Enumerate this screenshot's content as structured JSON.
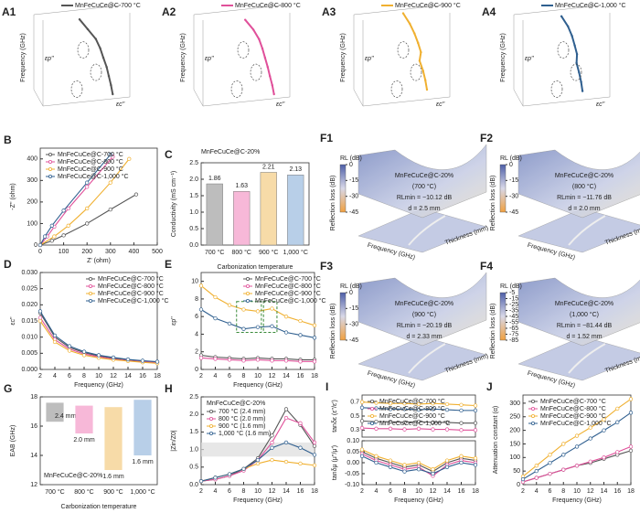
{
  "chart_data": [
    {
      "type": "line3d",
      "label": "A1",
      "zlabel": "Frequency (GHz)",
      "annotations": [
        "εp''",
        "εc''"
      ],
      "series": [
        {
          "name": "MnFeCuCe@C-700 °C",
          "color": "#555555",
          "z": [
            2,
            4,
            6,
            8,
            10,
            12,
            14,
            16,
            18
          ],
          "x": [
            9,
            7.5,
            6,
            5.2,
            4.6,
            4,
            3.6,
            3.2,
            2.9
          ],
          "values": [
            4,
            3.2,
            2.4,
            2,
            1.6,
            1.3,
            1.1,
            0.9,
            0.8
          ]
        }
      ]
    },
    {
      "type": "line3d",
      "label": "A2",
      "zlabel": "Frequency (GHz)",
      "annotations": [
        "εp''",
        "εc''"
      ],
      "series": [
        {
          "name": "MnFeCuCe@C-800 °C",
          "color": "#e0509a",
          "z": [
            2,
            4,
            6,
            8,
            10,
            12,
            14,
            16,
            18
          ],
          "x": [
            8,
            6.5,
            5.4,
            4.8,
            4.3,
            3.8,
            3.4,
            3,
            2.7
          ],
          "values": [
            3.6,
            2.8,
            2.1,
            1.8,
            1.5,
            1.2,
            1,
            0.9,
            0.8
          ]
        }
      ]
    },
    {
      "type": "line3d",
      "label": "A3",
      "zlabel": "Frequency (GHz)",
      "annotations": [
        "εp''",
        "εc''"
      ],
      "series": [
        {
          "name": "MnFeCuCe@C-900 °C",
          "color": "#f0b030",
          "z": [
            2,
            4,
            6,
            8,
            10,
            12,
            14,
            16,
            18
          ],
          "x": [
            10,
            8.6,
            7.6,
            6.9,
            6.4,
            6.7,
            5.9,
            5.4,
            5
          ],
          "values": [
            9.5,
            8.2,
            7.3,
            6.8,
            6.6,
            6.9,
            6,
            5.5,
            5
          ]
        }
      ]
    },
    {
      "type": "line3d",
      "label": "A4",
      "zlabel": "Frequency (GHz)",
      "annotations": [
        "εp''",
        "εc''"
      ],
      "series": [
        {
          "name": "MnFeCuCe@C-1,000 °C",
          "color": "#2f5f8f",
          "z": [
            2,
            4,
            6,
            8,
            10,
            12,
            14,
            16,
            18
          ],
          "x": [
            9.5,
            8.2,
            7.4,
            6.8,
            6.5,
            6.6,
            6,
            5.6,
            5.3
          ],
          "values": [
            6.8,
            5.8,
            5.2,
            4.6,
            4.8,
            4.9,
            4.2,
            3.9,
            3.6
          ]
        }
      ]
    },
    {
      "type": "line",
      "label": "B",
      "xlabel": "Z' (ohm)",
      "ylabel": "-Z'' (ohm)",
      "xlim": [
        0,
        500
      ],
      "xticks": [
        0,
        100,
        200,
        300,
        400,
        500
      ],
      "ylim": [
        0,
        450
      ],
      "yticks": [
        0,
        100,
        200,
        300,
        400
      ],
      "legend": "upper left",
      "series": [
        {
          "name": "MnFeCuCe@C-700 °C",
          "color": "#555555",
          "x": [
            0,
            50,
            100,
            200,
            300,
            410
          ],
          "values": [
            0,
            20,
            45,
            100,
            165,
            235
          ]
        },
        {
          "name": "MnFeCuCe@C-800 °C",
          "color": "#e0509a",
          "x": [
            0,
            30,
            60,
            120,
            200,
            310
          ],
          "values": [
            0,
            40,
            85,
            170,
            270,
            410
          ]
        },
        {
          "name": "MnFeCuCe@C-900 °C",
          "color": "#f0b030",
          "x": [
            0,
            60,
            120,
            200,
            300,
            380
          ],
          "values": [
            0,
            40,
            90,
            170,
            290,
            400
          ]
        },
        {
          "name": "MnFeCuCe@C-1,000 °C",
          "color": "#2f5f8f",
          "x": [
            0,
            20,
            50,
            100,
            200,
            300
          ],
          "values": [
            0,
            40,
            90,
            160,
            290,
            420
          ]
        }
      ]
    },
    {
      "type": "bar",
      "label": "C",
      "annotation": "MnFeCuCe@C-20%",
      "xlabel": "Carbonization temperature",
      "ylabel": "Conductivity (mS cm⁻¹)",
      "categories": [
        "700 °C",
        "800 °C",
        "900 °C",
        "1,000 °C"
      ],
      "values": [
        1.86,
        1.63,
        2.21,
        2.13
      ],
      "colors": [
        "#bdbdbd",
        "#f7b8d8",
        "#f7dba8",
        "#b8cfe8"
      ],
      "ylim": [
        0,
        2.5
      ],
      "yticks": [
        {
          "value": 0,
          "label": "0.0"
        },
        {
          "value": 0.5,
          "label": "0.5"
        },
        {
          "value": 1,
          "label": "1.0"
        },
        {
          "value": 1.5,
          "label": "1.5"
        },
        {
          "value": 2,
          "label": "2.0"
        },
        {
          "value": 2.5,
          "label": "2.5"
        }
      ]
    },
    {
      "type": "surface3d",
      "label": "F1",
      "colorbar_title": "RL (dB)",
      "colorbar_ticks": [
        0,
        -15,
        -30,
        -45
      ],
      "texts": [
        "MnFeCuCe@C-20%",
        "(700 °C)",
        "RLmin = −10.12 dB",
        "d = 2.5 mm"
      ],
      "zlabel": "Reflection loss (dB)",
      "xlabel": "Frequency (GHz)",
      "ylabel": "Thickness (mm)"
    },
    {
      "type": "surface3d",
      "label": "F2",
      "colorbar_title": "RL (dB)",
      "colorbar_ticks": [
        0,
        -15,
        -30,
        -45
      ],
      "texts": [
        "MnFeCuCe@C-20%",
        "(800 °C)",
        "RLmin = −11.76 dB",
        "d = 2.0 mm"
      ],
      "zlabel": "Reflection loss (dB)",
      "xlabel": "Frequency (GHz)",
      "ylabel": "Thickness (mm)"
    },
    {
      "type": "line",
      "label": "D",
      "xlabel": "Frequency (GHz)",
      "ylabel": "εc''",
      "xlim": [
        2,
        18
      ],
      "xticks": [
        2,
        4,
        6,
        8,
        10,
        12,
        14,
        16,
        18
      ],
      "legend": "upper right",
      "ylim": [
        0,
        0.03
      ],
      "yticks": [
        {
          "value": 0,
          "label": "0.000"
        },
        {
          "value": 0.005,
          "label": "0.005"
        },
        {
          "value": 0.01,
          "label": "0.010"
        },
        {
          "value": 0.015,
          "label": "0.015"
        },
        {
          "value": 0.02,
          "label": "0.020"
        },
        {
          "value": 0.025,
          "label": "0.025"
        },
        {
          "value": 0.03,
          "label": "0.030"
        }
      ],
      "x": [
        2,
        4,
        6,
        8,
        10,
        12,
        14,
        16,
        18
      ],
      "series": [
        {
          "name": "MnFeCuCe@C-700 °C",
          "color": "#555555",
          "values": [
            0.0175,
            0.01,
            0.0068,
            0.0052,
            0.0042,
            0.0035,
            0.003,
            0.0026,
            0.0023
          ]
        },
        {
          "name": "MnFeCuCe@C-800 °C",
          "color": "#e0509a",
          "values": [
            0.016,
            0.0092,
            0.0063,
            0.0048,
            0.0039,
            0.0032,
            0.0027,
            0.0024,
            0.0021
          ]
        },
        {
          "name": "MnFeCuCe@C-900 °C",
          "color": "#f0b030",
          "values": [
            0.015,
            0.0085,
            0.0058,
            0.0044,
            0.0036,
            0.003,
            0.0026,
            0.0022,
            0.0019
          ]
        },
        {
          "name": "MnFeCuCe@C-1,000 °C",
          "color": "#2f5f8f",
          "values": [
            0.018,
            0.0105,
            0.0072,
            0.0055,
            0.0044,
            0.0037,
            0.0031,
            0.0027,
            0.0024
          ]
        }
      ]
    },
    {
      "type": "line",
      "label": "E",
      "xlabel": "Frequency (GHz)",
      "ylabel": "εp''",
      "xlim": [
        2,
        18
      ],
      "xticks": [
        2,
        4,
        6,
        8,
        10,
        12,
        14,
        16,
        18
      ],
      "legend": "upper right",
      "ylim": [
        0,
        11
      ],
      "yticks": [
        0,
        2,
        4,
        6,
        8,
        10
      ],
      "x": [
        2,
        4,
        6,
        8,
        10,
        12,
        14,
        16,
        18
      ],
      "series": [
        {
          "name": "MnFeCuCe@C-700 °C",
          "color": "#555555",
          "values": [
            1.6,
            1.4,
            1.3,
            1.2,
            1.3,
            1.2,
            1.2,
            1.1,
            1.1
          ]
        },
        {
          "name": "MnFeCuCe@C-800 °C",
          "color": "#e0509a",
          "values": [
            1.3,
            1.2,
            1.1,
            1,
            1.1,
            1,
            1,
            0.9,
            0.9
          ]
        },
        {
          "name": "MnFeCuCe@C-900 °C",
          "color": "#f0b030",
          "values": [
            9.5,
            8.2,
            7.3,
            6.8,
            6.6,
            6.9,
            6,
            5.5,
            5
          ]
        },
        {
          "name": "MnFeCuCe@C-1,000 °C",
          "color": "#2f5f8f",
          "values": [
            6.8,
            5.8,
            5.2,
            4.6,
            4.8,
            4.9,
            4.2,
            3.9,
            3.6
          ]
        }
      ]
    },
    {
      "type": "surface3d",
      "label": "F3",
      "colorbar_title": "RL (dB)",
      "colorbar_ticks": [
        0,
        -15,
        -30,
        -45
      ],
      "texts": [
        "MnFeCuCe@C-20%",
        "(900 °C)",
        "RLmin = −20.19 dB",
        "d = 2.33 mm"
      ],
      "zlabel": "Reflection loss (dB)",
      "xlabel": "Frequency (GHz)",
      "ylabel": "Thickness (mm)"
    },
    {
      "type": "surface3d",
      "label": "F4",
      "colorbar_title": "RL (dB)",
      "colorbar_ticks": [
        -5,
        -15,
        -25,
        -35,
        -45,
        -55,
        -65,
        -75,
        -85
      ],
      "texts": [
        "MnFeCuCe@C-20%",
        "(1,000 °C)",
        "RLmin = −81.44 dB",
        "d = 1.52 mm"
      ],
      "zlabel": "Reflection loss (dB)",
      "xlabel": "Frequency (GHz)",
      "ylabel": "Thickness (mm)"
    },
    {
      "type": "range-bar",
      "label": "G",
      "annotation": "MnFeCuCe@C-20%",
      "xlabel": "Carbonization temperature",
      "ylabel": "EAB (GHz)",
      "categories": [
        "700 °C",
        "800 °C",
        "900 °C",
        "1,000 °C"
      ],
      "low": [
        16.3,
        15.5,
        13.0,
        14.0
      ],
      "high": [
        17.6,
        17.4,
        17.3,
        17.8
      ],
      "bar_labels": [
        "2.4 mm",
        "2.0 mm",
        "1.6 mm",
        "1.6 mm"
      ],
      "colors": [
        "#bdbdbd",
        "#f7b8d8",
        "#f7dba8",
        "#b8cfe8"
      ],
      "ylim": [
        12,
        18
      ],
      "yticks": [
        12,
        14,
        16,
        18
      ]
    },
    {
      "type": "line",
      "label": "H",
      "annotation": "MnFeCuCe@C-20%",
      "xlabel": "Frequency (GHz)",
      "ylabel": "|Zin/Z0|",
      "xlim": [
        2,
        18
      ],
      "xticks": [
        2,
        4,
        6,
        8,
        10,
        12,
        14,
        16,
        18
      ],
      "legend": "upper left",
      "ylim": [
        0,
        2.5
      ],
      "yticks": [
        {
          "value": 0,
          "label": "0.0"
        },
        {
          "value": 0.5,
          "label": "0.5"
        },
        {
          "value": 1,
          "label": "1.0"
        },
        {
          "value": 1.5,
          "label": "1.5"
        },
        {
          "value": 2,
          "label": "2.0"
        },
        {
          "value": 2.5,
          "label": "2.5"
        }
      ],
      "reference_band": [
        0.8,
        1.2
      ],
      "x": [
        2,
        4,
        6,
        8,
        10,
        12,
        14,
        16,
        18
      ],
      "series": [
        {
          "name": "700 °C (2.4 mm)",
          "color": "#555555",
          "values": [
            0.1,
            0.15,
            0.25,
            0.45,
            0.75,
            1.4,
            2.15,
            1.7,
            1.1
          ]
        },
        {
          "name": "800 °C (2.0 mm)",
          "color": "#e0509a",
          "values": [
            0.1,
            0.15,
            0.25,
            0.4,
            0.7,
            1.2,
            1.9,
            1.75,
            1.2
          ]
        },
        {
          "name": "900 °C (1.6 mm)",
          "color": "#f0b030",
          "values": [
            0.1,
            0.2,
            0.3,
            0.45,
            0.6,
            0.7,
            0.65,
            0.6,
            0.55
          ]
        },
        {
          "name": "1,000 °C (1.6 mm)",
          "color": "#2f5f8f",
          "values": [
            0.1,
            0.2,
            0.3,
            0.45,
            0.7,
            1.05,
            1.2,
            1.05,
            0.85
          ]
        }
      ]
    },
    {
      "type": "line",
      "label": "I",
      "ylabel": "tanδε (ε''/ε')",
      "xlim": [
        2,
        18
      ],
      "legend": "upper left",
      "ylim": [
        0.2,
        0.8
      ],
      "yticks": [
        {
          "value": 0.3,
          "label": "0.3"
        },
        {
          "value": 0.5,
          "label": "0.5"
        },
        {
          "value": 0.7,
          "label": "0.7"
        }
      ],
      "x": [
        2,
        4,
        6,
        8,
        10,
        12,
        14,
        16,
        18
      ],
      "series": [
        {
          "name": "MnFeCuCe@C-700 °C",
          "color": "#555555",
          "values": [
            0.43,
            0.42,
            0.42,
            0.41,
            0.42,
            0.41,
            0.41,
            0.4,
            0.4
          ]
        },
        {
          "name": "MnFeCuCe@C-800 °C",
          "color": "#e0509a",
          "values": [
            0.33,
            0.32,
            0.32,
            0.31,
            0.32,
            0.31,
            0.31,
            0.3,
            0.3
          ]
        },
        {
          "name": "MnFeCuCe@C-900 °C",
          "color": "#f0b030",
          "values": [
            0.7,
            0.69,
            0.68,
            0.68,
            0.67,
            0.68,
            0.67,
            0.66,
            0.65
          ]
        },
        {
          "name": "MnFeCuCe@C-1,000 °C",
          "color": "#2f5f8f",
          "values": [
            0.62,
            0.61,
            0.6,
            0.6,
            0.59,
            0.6,
            0.59,
            0.58,
            0.58
          ]
        }
      ]
    },
    {
      "type": "line",
      "xlabel": "Frequency (GHz)",
      "ylabel": "tanδμ (μ''/μ')",
      "xlim": [
        2,
        18
      ],
      "xticks": [
        2,
        4,
        6,
        8,
        10,
        12,
        14,
        16,
        18
      ],
      "ylim": [
        -0.1,
        0.1
      ],
      "yticks": [
        {
          "value": -0.1,
          "label": "-0.10"
        },
        {
          "value": -0.05,
          "label": "-0.05"
        },
        {
          "value": 0,
          "label": "0.00"
        },
        {
          "value": 0.05,
          "label": "0.05"
        },
        {
          "value": 0.1,
          "label": "0.10"
        }
      ],
      "x": [
        2,
        4,
        6,
        8,
        10,
        12,
        14,
        16,
        18
      ],
      "series": [
        {
          "color": "#555555",
          "values": [
            0.05,
            0.02,
            0,
            -0.02,
            -0.01,
            -0.04,
            0,
            0.02,
            0.01
          ]
        },
        {
          "color": "#e0509a",
          "values": [
            0.04,
            0.01,
            -0.01,
            -0.03,
            -0.02,
            -0.06,
            -0.01,
            0.01,
            0
          ]
        },
        {
          "color": "#f0b030",
          "values": [
            0.06,
            0.03,
            0.01,
            -0.01,
            0,
            -0.03,
            0.01,
            0.03,
            0.02
          ]
        },
        {
          "color": "#2f5f8f",
          "values": [
            0.03,
            0,
            -0.02,
            -0.04,
            -0.03,
            -0.05,
            -0.02,
            0,
            -0.01
          ]
        }
      ]
    },
    {
      "type": "line",
      "label": "J",
      "xlabel": "Frequency (GHz)",
      "ylabel": "Attenuation constant (α)",
      "xlim": [
        2,
        18
      ],
      "xticks": [
        2,
        4,
        6,
        8,
        10,
        12,
        14,
        16,
        18
      ],
      "legend": "upper left",
      "ylim": [
        0,
        330
      ],
      "yticks": [
        0,
        50,
        100,
        150,
        200,
        250,
        300
      ],
      "x": [
        2,
        4,
        6,
        8,
        10,
        12,
        14,
        16,
        18
      ],
      "series": [
        {
          "name": "MnFeCuCe@C-700 °C",
          "color": "#555555",
          "values": [
            10,
            25,
            40,
            55,
            70,
            80,
            95,
            110,
            125
          ]
        },
        {
          "name": "MnFeCuCe@C-800 °C",
          "color": "#e0509a",
          "values": [
            10,
            25,
            40,
            55,
            70,
            85,
            100,
            120,
            140
          ]
        },
        {
          "name": "MnFeCuCe@C-900 °C",
          "color": "#f0b030",
          "values": [
            30,
            70,
            110,
            150,
            180,
            210,
            240,
            280,
            315
          ]
        },
        {
          "name": "MnFeCuCe@C-1,000 °C",
          "color": "#2f5f8f",
          "values": [
            20,
            50,
            80,
            110,
            140,
            170,
            200,
            230,
            265
          ]
        }
      ]
    }
  ]
}
